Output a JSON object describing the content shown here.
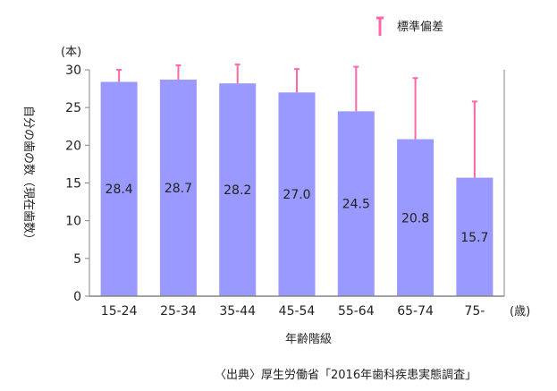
{
  "chart_data": {
    "type": "bar",
    "categories": [
      "15-24",
      "25-34",
      "35-44",
      "45-54",
      "55-64",
      "65-74",
      "75-"
    ],
    "values": [
      28.4,
      28.7,
      28.2,
      27.0,
      24.5,
      20.8,
      15.7
    ],
    "error_tops": [
      30.0,
      30.6,
      30.7,
      30.1,
      30.4,
      28.9,
      25.8
    ],
    "value_labels": [
      "28.4",
      "28.7",
      "28.2",
      "27.0",
      "24.5",
      "20.8",
      "15.7"
    ],
    "ylim": [
      0,
      30
    ],
    "yticks": [
      "0",
      "5",
      "10",
      "15",
      "20",
      "25",
      "30"
    ],
    "ylabel": "自分の歯の数（現在歯数）",
    "y_unit": "(本)",
    "xlabel": "年齢階級",
    "x_unit": "(歳)",
    "legend": {
      "label": "標準偏差",
      "position": "top-right"
    },
    "grid": false,
    "colors": {
      "bar": "#9999ff",
      "error": "#ff66aa",
      "axis": "#868686"
    }
  },
  "source": "〈出典〉厚生労働省「2016年歯科疾患実態調査」"
}
